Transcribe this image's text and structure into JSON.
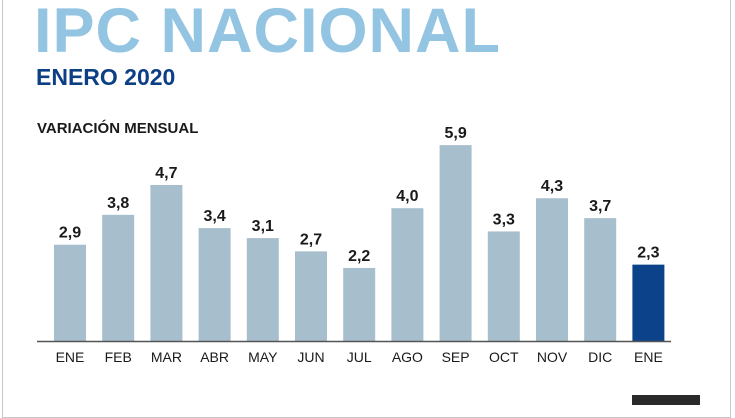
{
  "header": {
    "title": "IPC NACIONAL",
    "subtitle": "ENERO 2020"
  },
  "chart_data": {
    "type": "bar",
    "title": "VARIACIÓN MENSUAL",
    "categories": [
      "ENE",
      "FEB",
      "MAR",
      "ABR",
      "MAY",
      "JUN",
      "JUL",
      "AGO",
      "SEP",
      "OCT",
      "NOV",
      "DIC",
      "ENE"
    ],
    "values": [
      2.9,
      3.8,
      4.7,
      3.4,
      3.1,
      2.7,
      2.2,
      4.0,
      5.9,
      3.3,
      4.3,
      3.7,
      2.3
    ],
    "labels": [
      "2,9",
      "3,8",
      "4,7",
      "3,4",
      "3,1",
      "2,7",
      "2,2",
      "4,0",
      "5,9",
      "3,3",
      "4,3",
      "3,7",
      "2,3"
    ],
    "highlight_index": 12,
    "colors": {
      "bar": "#a7bfcd",
      "highlight": "#0b4289",
      "axis": "#555555"
    },
    "xlabel": "",
    "ylabel": "",
    "ylim": [
      0,
      6
    ],
    "grid": false
  }
}
